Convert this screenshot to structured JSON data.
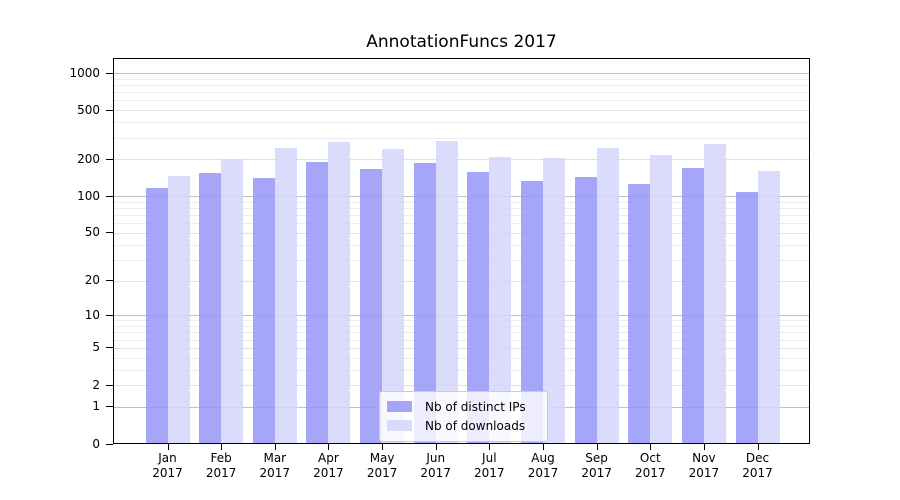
{
  "chart_data": {
    "type": "bar",
    "title": "AnnotationFuncs 2017",
    "categories": [
      "Jan",
      "Feb",
      "Mar",
      "Apr",
      "May",
      "Jun",
      "Jul",
      "Aug",
      "Sep",
      "Oct",
      "Nov",
      "Dec"
    ],
    "year_label": "2017",
    "series": [
      {
        "name": "Nb of distinct IPs",
        "color": "rgba(150,150,247,0.85)",
        "values": [
          116,
          154,
          142,
          191,
          166,
          187,
          158,
          133,
          144,
          126,
          169,
          109
        ]
      },
      {
        "name": "Nb of downloads",
        "color": "rgba(213,213,250,0.85)",
        "values": [
          146,
          200,
          245,
          278,
          241,
          281,
          210,
          206,
          245,
          216,
          268,
          162
        ]
      }
    ],
    "xlabel": "",
    "ylabel": "",
    "yscale": "log1p",
    "ylim": [
      0,
      1300
    ],
    "yticks": [
      {
        "v": 0,
        "label": "0"
      },
      {
        "v": 1,
        "label": "1"
      },
      {
        "v": 2,
        "label": "2"
      },
      {
        "v": 5,
        "label": "5"
      },
      {
        "v": 10,
        "label": "10"
      },
      {
        "v": 20,
        "label": "20"
      },
      {
        "v": 50,
        "label": "50"
      },
      {
        "v": 100,
        "label": "100"
      },
      {
        "v": 200,
        "label": "200"
      },
      {
        "v": 500,
        "label": "500"
      },
      {
        "v": 1000,
        "label": "1000"
      }
    ],
    "grid": {
      "major": [
        1,
        10,
        100,
        1000
      ],
      "minor_labeled": [
        2,
        5,
        20,
        50,
        200,
        500
      ],
      "minor": [
        3,
        4,
        6,
        7,
        8,
        9,
        30,
        40,
        60,
        70,
        80,
        90,
        300,
        400,
        600,
        700,
        800,
        900
      ],
      "major_color": "#c2c2c2",
      "minor_labeled_color": "#e0e0e0",
      "minor_color": "#ececec"
    },
    "legend_position": "lower center",
    "spine_color": "#000000",
    "background_color": "#ffffff"
  }
}
